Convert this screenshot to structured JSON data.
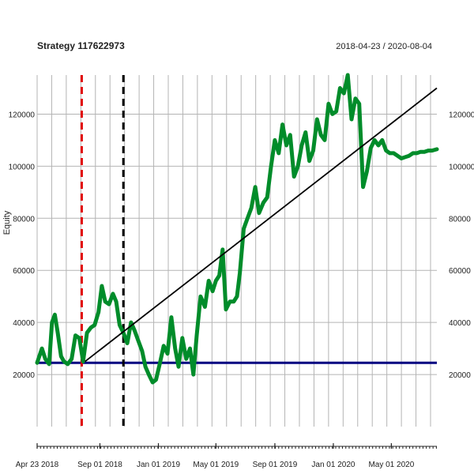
{
  "chart_data": {
    "type": "line",
    "title": "Strategy 117622973",
    "date_range": "2018-04-23 / 2020-08-04",
    "ylabel": "Equity",
    "ylim": [
      0,
      135000
    ],
    "xlim": [
      "2018-04-23",
      "2020-08-04"
    ],
    "y_ticks": [
      20000,
      40000,
      60000,
      80000,
      100000,
      120000
    ],
    "y_tick_labels": [
      "20000",
      "40000",
      "60000",
      "80000",
      "100000",
      "120000"
    ],
    "x_tick_labels": [
      {
        "date": "2018-04-23",
        "label": "Apr 23 2018"
      },
      {
        "date": "2018-09-01",
        "label": "Sep 01 2018"
      },
      {
        "date": "2019-01-01",
        "label": "Jan 01 2019"
      },
      {
        "date": "2019-05-01",
        "label": "May 01 2019"
      },
      {
        "date": "2019-09-01",
        "label": "Sep 01 2019"
      },
      {
        "date": "2020-01-01",
        "label": "Jan 01 2020"
      },
      {
        "date": "2020-05-01",
        "label": "May 01 2020"
      }
    ],
    "grid": true,
    "vertical_markers": [
      {
        "date": "2018-07-25",
        "color": "#e00000",
        "style": "dashed"
      },
      {
        "date": "2018-10-20",
        "color": "#000000",
        "style": "dashed"
      }
    ],
    "baseline": {
      "value": 24500,
      "color": "#000080"
    },
    "trend_line": {
      "x": [
        "2018-08-01",
        "2020-08-04"
      ],
      "y": [
        25000,
        130000
      ],
      "color": "#000000"
    },
    "series": [
      {
        "color": "#008c2a",
        "x": [
          "2018-04-23",
          "2018-05-03",
          "2018-05-10",
          "2018-05-18",
          "2018-05-24",
          "2018-05-30",
          "2018-06-05",
          "2018-06-12",
          "2018-06-18",
          "2018-06-26",
          "2018-07-04",
          "2018-07-12",
          "2018-07-20",
          "2018-07-28",
          "2018-08-05",
          "2018-08-13",
          "2018-08-21",
          "2018-08-29",
          "2018-09-05",
          "2018-09-12",
          "2018-09-20",
          "2018-09-28",
          "2018-10-05",
          "2018-10-12",
          "2018-10-20",
          "2018-10-28",
          "2018-11-05",
          "2018-11-12",
          "2018-11-20",
          "2018-11-28",
          "2018-12-05",
          "2018-12-12",
          "2018-12-20",
          "2018-12-27",
          "2019-01-05",
          "2019-01-12",
          "2019-01-20",
          "2019-01-28",
          "2019-02-05",
          "2019-02-12",
          "2019-02-20",
          "2019-02-28",
          "2019-03-08",
          "2019-03-15",
          "2019-03-22",
          "2019-03-30",
          "2019-04-08",
          "2019-04-16",
          "2019-04-24",
          "2019-05-01",
          "2019-05-08",
          "2019-05-15",
          "2019-05-22",
          "2019-05-30",
          "2019-06-07",
          "2019-06-14",
          "2019-06-20",
          "2019-06-28",
          "2019-07-06",
          "2019-07-14",
          "2019-07-22",
          "2019-07-30",
          "2019-08-08",
          "2019-08-16",
          "2019-08-24",
          "2019-09-01",
          "2019-09-09",
          "2019-09-17",
          "2019-09-25",
          "2019-10-03",
          "2019-10-11",
          "2019-10-19",
          "2019-10-27",
          "2019-11-04",
          "2019-11-12",
          "2019-11-20",
          "2019-11-28",
          "2019-12-06",
          "2019-12-14",
          "2019-12-22",
          "2019-12-30",
          "2020-01-07",
          "2020-01-15",
          "2020-01-23",
          "2020-01-31",
          "2020-02-08",
          "2020-02-16",
          "2020-02-24",
          "2020-03-03",
          "2020-03-11",
          "2020-03-19",
          "2020-03-27",
          "2020-04-04",
          "2020-04-12",
          "2020-04-20",
          "2020-04-28",
          "2020-05-06",
          "2020-05-14",
          "2020-05-22",
          "2020-05-30",
          "2020-06-07",
          "2020-06-15",
          "2020-06-23",
          "2020-07-01",
          "2020-07-09",
          "2020-07-17",
          "2020-07-25",
          "2020-08-04"
        ],
        "y": [
          24500,
          30000,
          26000,
          24000,
          40000,
          43000,
          36000,
          27000,
          25000,
          24000,
          26000,
          35000,
          34000,
          25000,
          36000,
          38000,
          39000,
          44000,
          54000,
          48000,
          47000,
          51000,
          48000,
          39000,
          36000,
          32000,
          40000,
          37000,
          33000,
          29000,
          23000,
          20000,
          17000,
          18000,
          25000,
          31000,
          28000,
          42000,
          30000,
          23000,
          34000,
          26000,
          30000,
          20000,
          35000,
          50000,
          46000,
          56000,
          52000,
          56000,
          58000,
          68000,
          45000,
          48000,
          48000,
          50000,
          59000,
          76000,
          80000,
          84000,
          92000,
          82000,
          86000,
          88000,
          100000,
          110000,
          105000,
          116000,
          108000,
          112000,
          96000,
          100000,
          108000,
          113000,
          102000,
          106000,
          118000,
          112000,
          110000,
          124000,
          120000,
          121000,
          130000,
          128000,
          135000,
          118000,
          126000,
          124000,
          92000,
          98000,
          107000,
          110000,
          108000,
          110000,
          106000,
          105000,
          105000,
          104000,
          103000,
          103500,
          104000,
          105000,
          105000,
          105500,
          105500,
          106000,
          106000,
          106500
        ]
      }
    ]
  }
}
